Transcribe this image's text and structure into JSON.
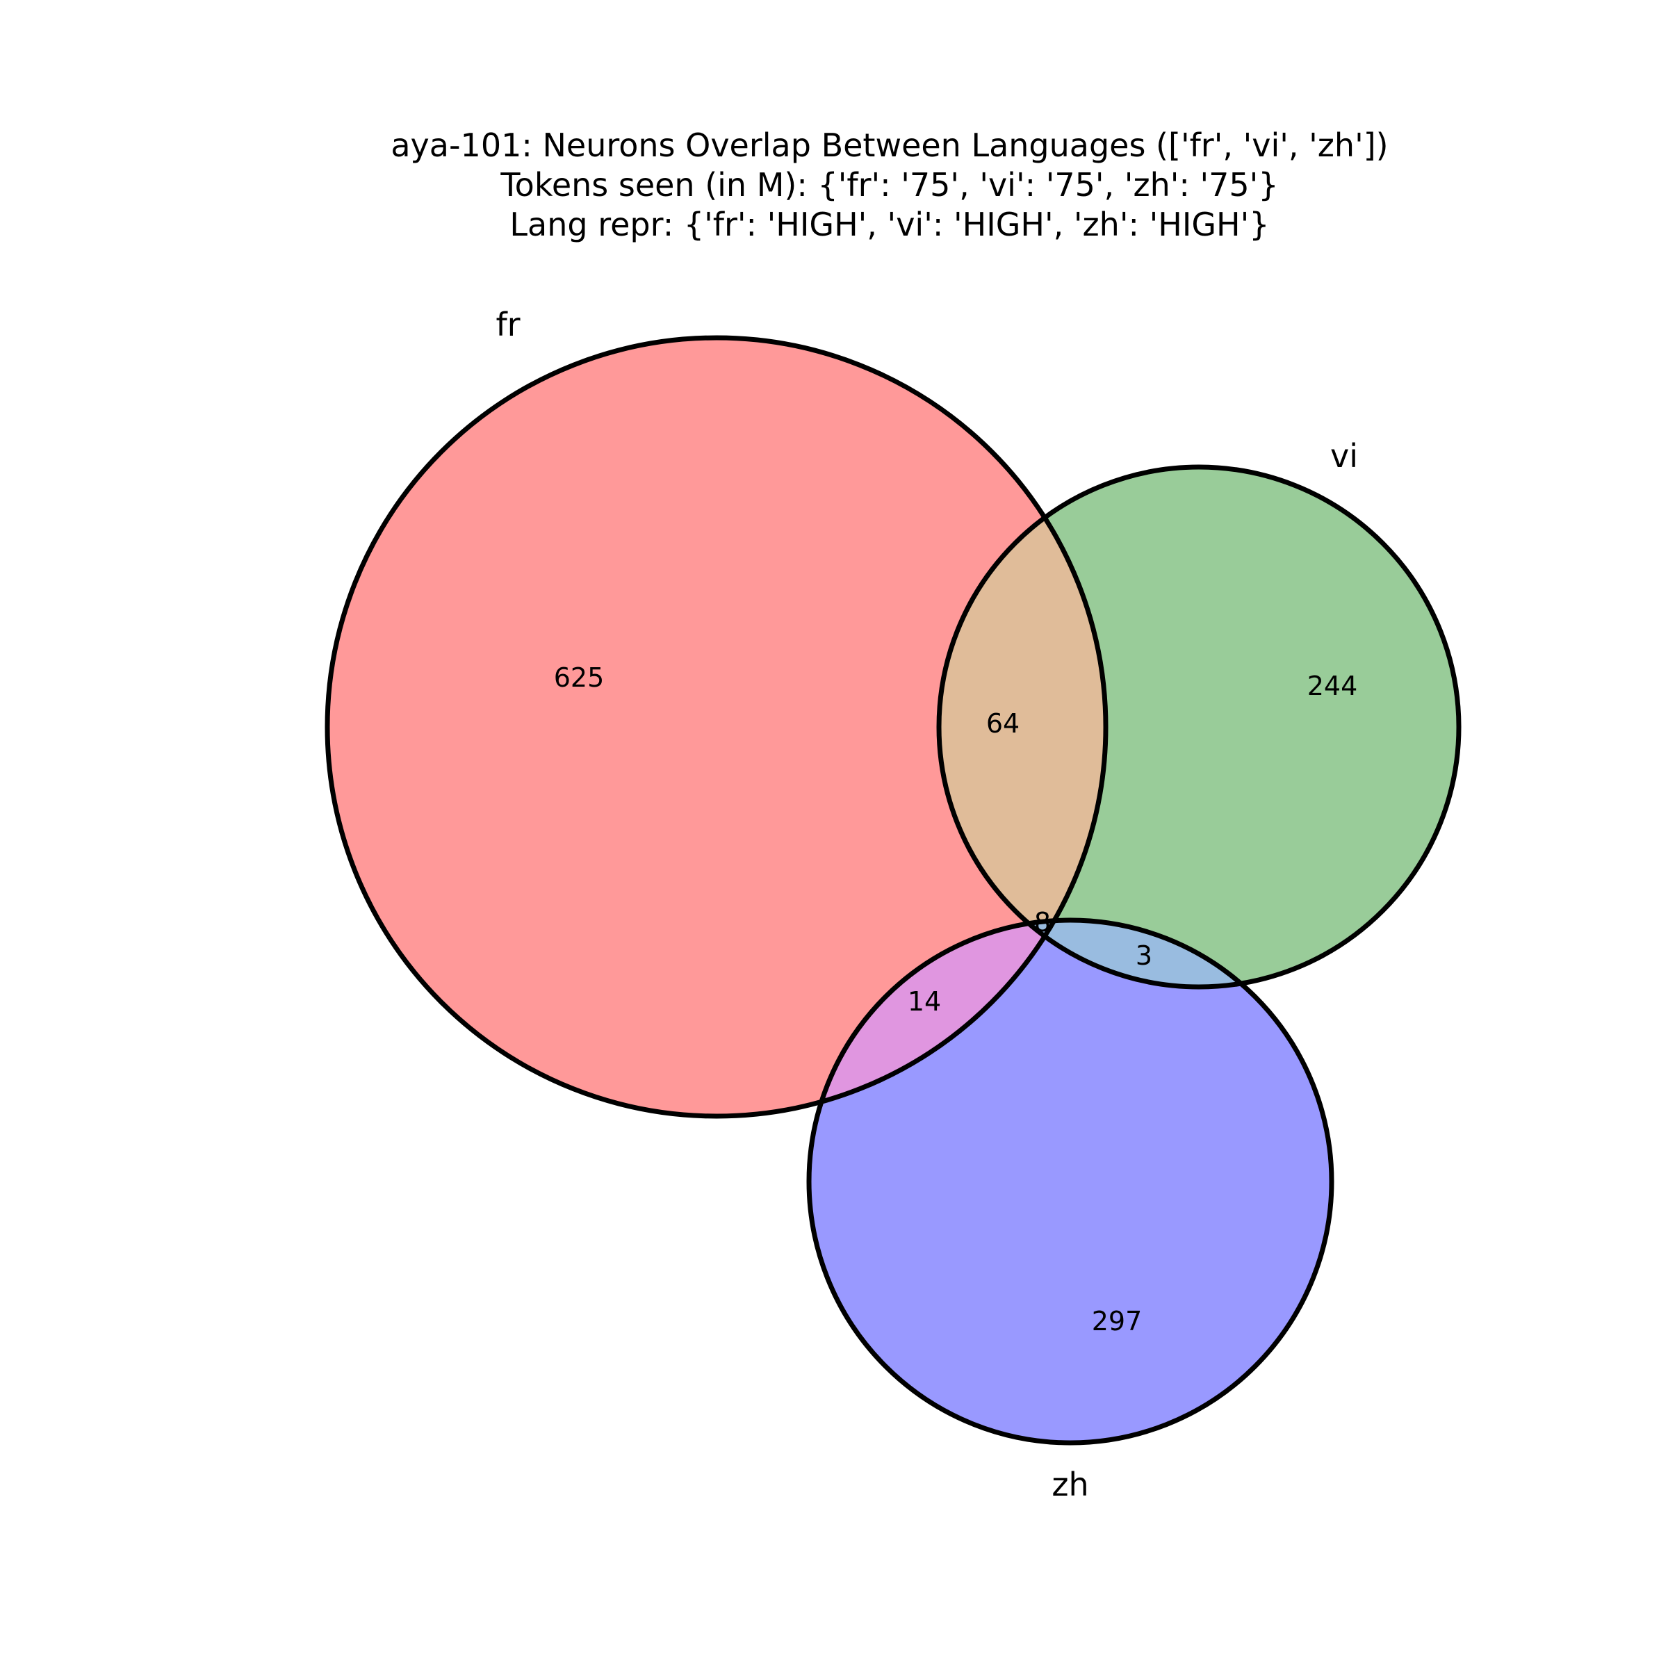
{
  "figure": {
    "title": [
      "aya-101: Neurons Overlap Between Languages (['fr', 'vi', 'zh'])",
      "Tokens seen (in M): {'fr': '75', 'vi': '75', 'zh': '75'}",
      "Lang repr: {'fr': 'HIGH', 'vi': 'HIGH', 'zh': 'HIGH'}"
    ]
  },
  "venn": {
    "sets": [
      {
        "name": "fr",
        "color": "#ff9999"
      },
      {
        "name": "vi",
        "color": "#99cc99"
      },
      {
        "name": "zh",
        "color": "#9999ff"
      }
    ],
    "regions": {
      "fr_only": "625",
      "vi_only": "244",
      "zh_only": "297",
      "fr_vi": "64",
      "fr_zh": "14",
      "vi_zh": "3",
      "fr_vi_zh": "8"
    },
    "overlap_colors": {
      "fr_vi": "#e0bc99",
      "fr_zh": "#e096e0",
      "vi_zh": "#99bce0"
    }
  }
}
